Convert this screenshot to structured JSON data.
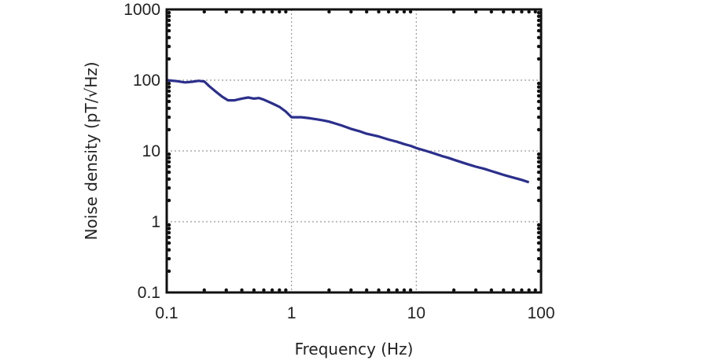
{
  "chart_data": {
    "type": "line",
    "xscale": "log",
    "yscale": "log",
    "xlim": [
      0.1,
      100
    ],
    "ylim": [
      0.1,
      1000
    ],
    "xlabel": "Frequency (Hz)",
    "ylabel": "Noise density (pT/√Hz)",
    "x_ticks": [
      {
        "value": 0.1,
        "label": "0.1"
      },
      {
        "value": 1,
        "label": "1"
      },
      {
        "value": 10,
        "label": "10"
      },
      {
        "value": 100,
        "label": "100"
      }
    ],
    "y_ticks": [
      {
        "value": 0.1,
        "label": "0.1"
      },
      {
        "value": 1,
        "label": "1"
      },
      {
        "value": 10,
        "label": "10"
      },
      {
        "value": 100,
        "label": "100"
      },
      {
        "value": 1000,
        "label": "1000"
      }
    ],
    "grid": true,
    "line_color": "#2b2f8c",
    "series": [
      {
        "x": [
          0.1,
          0.12,
          0.14,
          0.16,
          0.18,
          0.2,
          0.22,
          0.25,
          0.28,
          0.31,
          0.35,
          0.4,
          0.45,
          0.5,
          0.55,
          0.6,
          0.7,
          0.8,
          0.9,
          1.0,
          1.2,
          1.4,
          1.6,
          1.8,
          2.0,
          2.5,
          3,
          3.5,
          4,
          5,
          6,
          7,
          8,
          9,
          10,
          12,
          14,
          16,
          18,
          20,
          25,
          30,
          35,
          40,
          50,
          60,
          70,
          80
        ],
        "y": [
          100,
          97,
          93,
          95,
          98,
          96,
          82,
          68,
          58,
          52,
          52,
          55,
          57,
          55,
          56,
          53,
          47,
          42,
          36,
          30,
          30,
          29,
          28,
          27,
          26,
          23,
          20.5,
          19,
          17.5,
          16,
          14.5,
          13.5,
          12.5,
          11.8,
          11,
          10,
          9.2,
          8.5,
          8,
          7.5,
          6.6,
          6,
          5.6,
          5.2,
          4.6,
          4.2,
          3.9,
          3.6
        ]
      }
    ]
  }
}
